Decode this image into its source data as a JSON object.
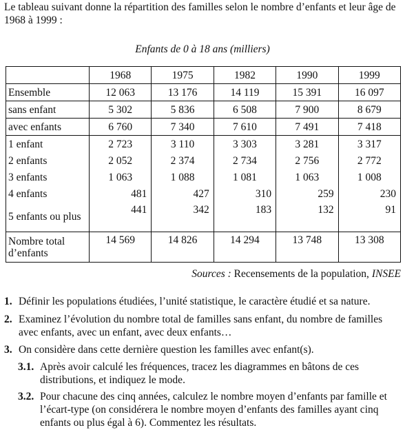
{
  "intro": "Le tableau suivant donne la répartition des familles selon le nombre d’enfants et leur âge de 1968 à 1999 :",
  "caption": "Enfants de 0 à 18 ans (milliers)",
  "table": {
    "years": [
      "1968",
      "1975",
      "1982",
      "1990",
      "1999"
    ],
    "rows": [
      {
        "label": "Ensemble",
        "values": [
          "12 063",
          "13 176",
          "14 119",
          "15 391",
          "16 097"
        ],
        "align": "center"
      },
      {
        "label": "sans enfant",
        "values": [
          "5 302",
          "5 836",
          "6 508",
          "7 900",
          "8 679"
        ],
        "align": "center"
      },
      {
        "label": "avec enfants",
        "values": [
          "6 760",
          "7 340",
          "7 610",
          "7 491",
          "7 418"
        ],
        "align": "center"
      },
      {
        "label": "1 enfant",
        "values": [
          "2 723",
          "3 110",
          "3 303",
          "3 281",
          "3 317"
        ],
        "align": "center"
      },
      {
        "label": "2 enfants",
        "values": [
          "2 052",
          "2 374",
          "2 734",
          "2 756",
          "2 772"
        ],
        "align": "center"
      },
      {
        "label": "3 enfants",
        "values": [
          "1 063",
          "1 088",
          "1 081",
          "1 063",
          "1 008"
        ],
        "align": "center"
      },
      {
        "label": "4 enfants",
        "values": [
          "481",
          "427",
          "310",
          "259",
          "230"
        ],
        "align": "right"
      },
      {
        "label": "5 enfants ou plus",
        "values": [
          "441",
          "342",
          "183",
          "132",
          "91"
        ],
        "align": "right"
      },
      {
        "label": "Nombre total d’enfants",
        "values": [
          "14 569",
          "14 826",
          "14 294",
          "13 748",
          "13 308"
        ],
        "align": "center"
      }
    ]
  },
  "source": {
    "prefix": "Sources :",
    "body": " Recensements de la population, ",
    "org": "INSEE"
  },
  "questions": [
    {
      "num": "1.",
      "text": "Définir les populations étudiées, l’unité statistique, le caractère étudié et sa nature."
    },
    {
      "num": "2.",
      "text": "Examinez l’évolution du nombre total de familles sans enfant, du nombre de familles avec enfants, avec un enfant, avec deux enfants…"
    },
    {
      "num": "3.",
      "text": "On considère dans cette dernière question les familles avec enfant(s)."
    },
    {
      "num": "3.1.",
      "text": "Après avoir calculé les fréquences, tracez les diagrammes en bâtons de ces distributions, et indiquez le mode."
    },
    {
      "num": "3.2.",
      "text": "Pour chacune des cinq années, calculez le nombre moyen d’enfants par famille et l’écart-type (on considérera le nombre moyen d’enfants des familles ayant cinq enfants ou plus égal à 6). Commentez les résultats."
    }
  ]
}
